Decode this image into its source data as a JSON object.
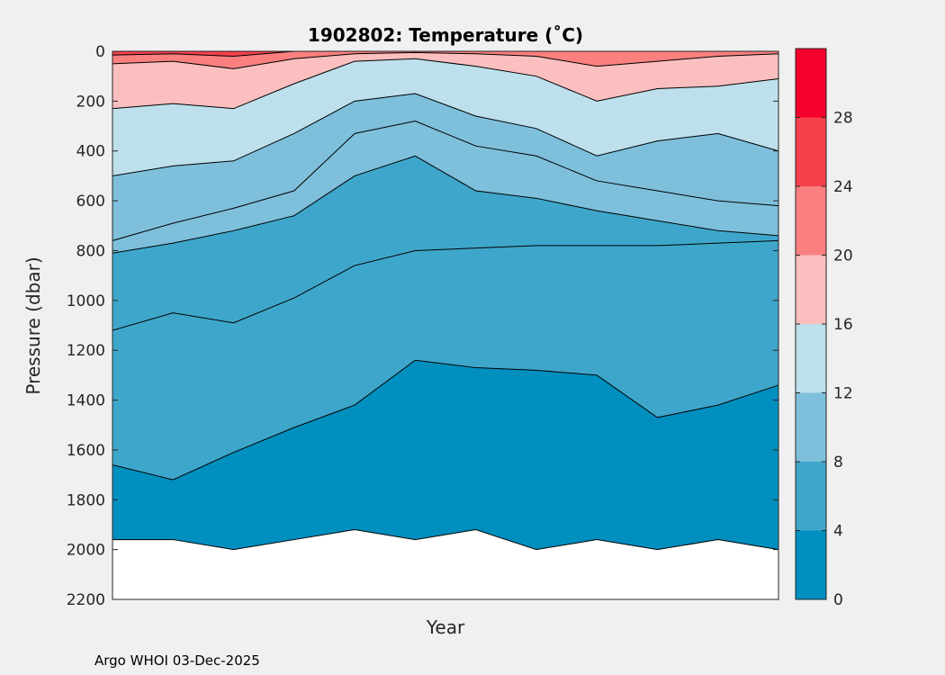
{
  "chart_data": {
    "type": "contourf",
    "title": "1902802:  Temperature (˚C)",
    "xlabel": "Year",
    "ylabel": "Pressure (dbar)",
    "ylim": [
      0,
      2200
    ],
    "y_reversed": true,
    "y_ticks": [
      0,
      200,
      400,
      600,
      800,
      1000,
      1200,
      1400,
      1600,
      1800,
      2000,
      2200
    ],
    "x": [
      0,
      1,
      2,
      3,
      4,
      5,
      6,
      7,
      8,
      9,
      10,
      11
    ],
    "max_pressure": [
      1960,
      1960,
      2000,
      1960,
      1920,
      1960,
      1920,
      2000,
      1960,
      2000,
      1960,
      2000
    ],
    "colorbar": {
      "levels": [
        0,
        4,
        8,
        12,
        16,
        20,
        24,
        28,
        32
      ],
      "tick_labels": [
        0,
        4,
        8,
        12,
        16,
        20,
        24,
        28
      ],
      "colors": [
        "#008fbf",
        "#3ea6cb",
        "#7ec0dc",
        "#bde0ec",
        "#fcbfbf",
        "#fa7f7f",
        "#f6404c",
        "#f5002a"
      ]
    },
    "isotherms": [
      {
        "level": 4,
        "pressure": [
          1660,
          1720,
          1610,
          1510,
          1420,
          1240,
          1270,
          1280,
          1300,
          1470,
          1420,
          1340
        ]
      },
      {
        "level": 6,
        "pressure": [
          1120,
          1050,
          1090,
          990,
          860,
          800,
          790,
          780,
          780,
          780,
          770,
          760
        ]
      },
      {
        "level": 8,
        "pressure": [
          810,
          770,
          720,
          660,
          500,
          420,
          560,
          590,
          640,
          680,
          720,
          740
        ]
      },
      {
        "level": 10,
        "pressure": [
          760,
          690,
          630,
          560,
          330,
          280,
          380,
          420,
          520,
          560,
          600,
          620
        ]
      },
      {
        "level": 12,
        "pressure": [
          500,
          460,
          440,
          330,
          200,
          170,
          260,
          310,
          420,
          360,
          330,
          400
        ]
      },
      {
        "level": 16,
        "pressure": [
          230,
          210,
          230,
          130,
          40,
          30,
          60,
          100,
          200,
          150,
          140,
          110
        ]
      },
      {
        "level": 20,
        "pressure": [
          50,
          40,
          70,
          30,
          10,
          5,
          10,
          20,
          60,
          40,
          20,
          10
        ]
      },
      {
        "level": 24,
        "pressure": [
          15,
          10,
          20,
          0,
          0,
          0,
          0,
          0,
          0,
          0,
          0,
          0
        ]
      }
    ]
  },
  "footer": "Argo WHOI 03-Dec-2025"
}
